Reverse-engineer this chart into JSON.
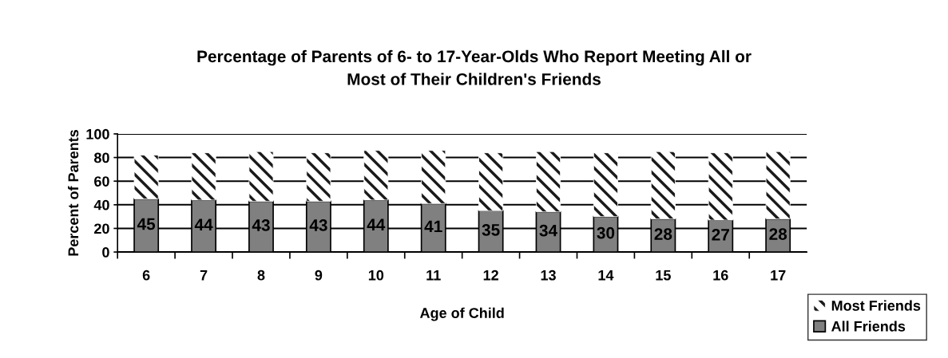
{
  "chart_data": {
    "type": "bar",
    "title": "Percentage of Parents of 6- to 17-Year-Olds Who Report Meeting All or\nMost of Their Children's Friends",
    "xlabel": "Age of Child",
    "ylabel": "Percent of Parents",
    "categories": [
      "6",
      "7",
      "8",
      "9",
      "10",
      "11",
      "12",
      "13",
      "14",
      "15",
      "16",
      "17"
    ],
    "stacked": true,
    "ylim": [
      0,
      100
    ],
    "yticks": [
      0,
      20,
      40,
      60,
      80,
      100
    ],
    "grid": "y",
    "legend": "bottom right",
    "series": [
      {
        "name": "All Friends",
        "color": "#808080",
        "values": [
          45,
          44,
          43,
          43,
          44,
          41,
          35,
          34,
          30,
          28,
          27,
          28
        ],
        "data_labels": true
      },
      {
        "name": "Most Friends",
        "color": "#ffffff",
        "values": [
          37,
          40,
          42,
          41,
          42,
          45,
          49,
          51,
          54,
          57,
          57,
          57
        ]
      }
    ]
  }
}
